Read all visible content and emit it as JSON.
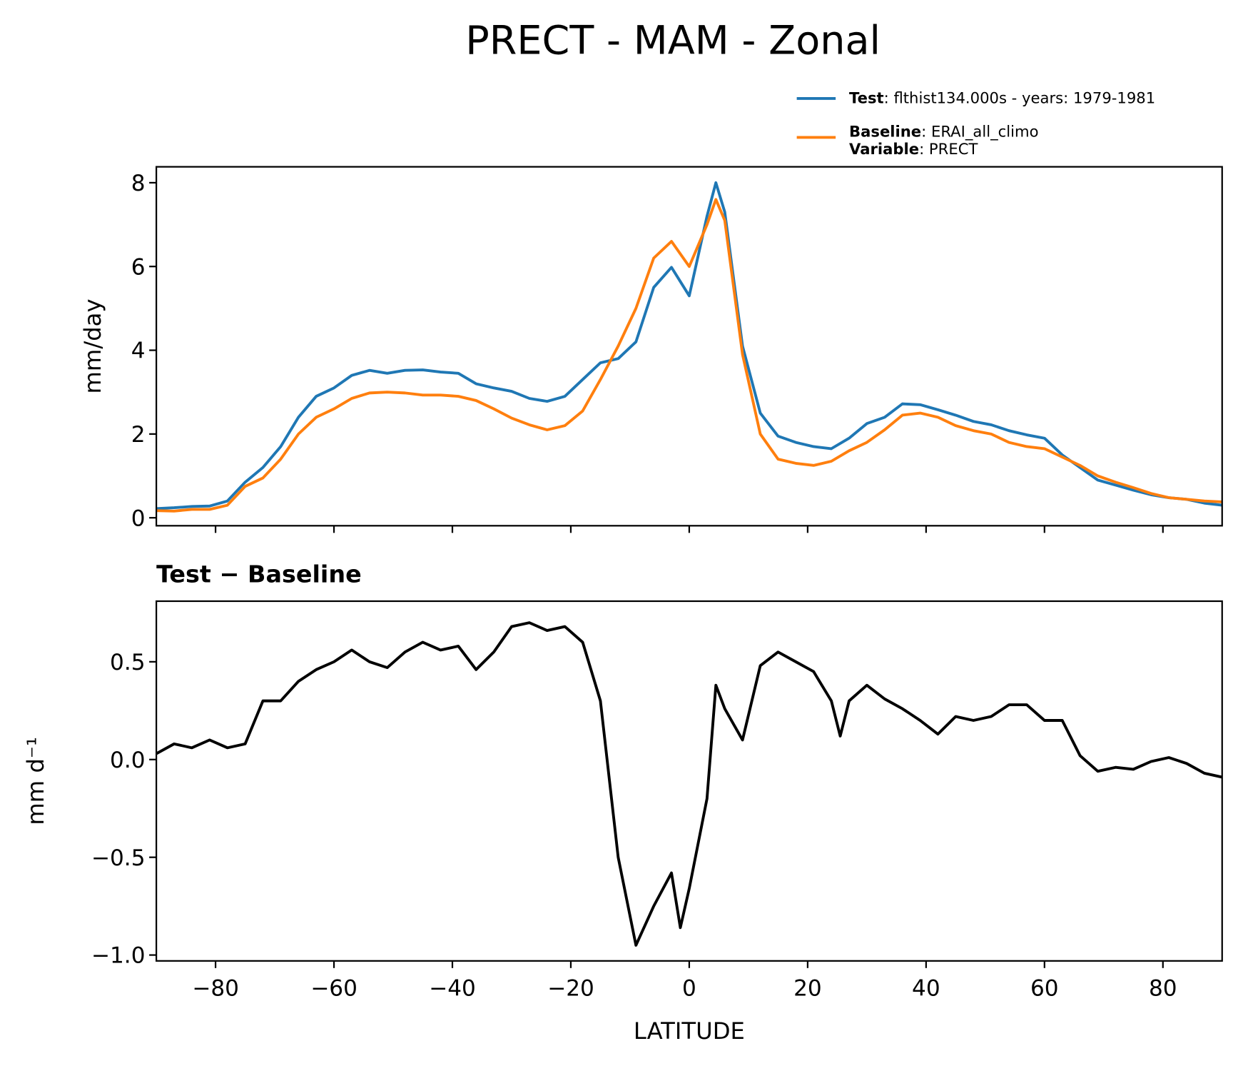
{
  "title": "PRECT - MAM - Zonal",
  "chart_data": [
    {
      "type": "line",
      "ylabel": "mm/day",
      "x": [
        -90,
        -87,
        -84,
        -81,
        -78,
        -75,
        -72,
        -69,
        -66,
        -63,
        -60,
        -57,
        -54,
        -51,
        -48,
        -45,
        -42,
        -39,
        -36,
        -33,
        -30,
        -27,
        -24,
        -21,
        -18,
        -15,
        -12,
        -9,
        -6,
        -3,
        0,
        3,
        4.5,
        6,
        9,
        12,
        15,
        18,
        21,
        24,
        27,
        30,
        33,
        36,
        39,
        42,
        45,
        48,
        51,
        54,
        57,
        60,
        63,
        66,
        69,
        72,
        75,
        78,
        81,
        84,
        87,
        90
      ],
      "series": [
        {
          "name": "Test",
          "legend_detail": ": flthist134.000s - years: 1979-1981",
          "color": "#1f77b4",
          "values": [
            0.22,
            0.24,
            0.27,
            0.28,
            0.4,
            0.85,
            1.2,
            1.7,
            2.4,
            2.9,
            3.1,
            3.4,
            3.52,
            3.45,
            3.52,
            3.53,
            3.48,
            3.45,
            3.2,
            3.1,
            3.02,
            2.85,
            2.78,
            2.9,
            3.3,
            3.7,
            3.8,
            4.2,
            5.5,
            5.98,
            5.3,
            7.2,
            8.0,
            7.3,
            4.1,
            2.5,
            1.95,
            1.8,
            1.7,
            1.65,
            1.9,
            2.25,
            2.4,
            2.72,
            2.7,
            2.58,
            2.45,
            2.3,
            2.22,
            2.08,
            1.98,
            1.9,
            1.5,
            1.2,
            0.9,
            0.78,
            0.66,
            0.55,
            0.48,
            0.44,
            0.35,
            0.3
          ]
        },
        {
          "name": "Baseline",
          "legend_detail": ": ERAI_all_climo",
          "legend_extra_name": "Variable",
          "legend_extra_detail": ": PRECT",
          "color": "#ff7f0e",
          "values": [
            0.17,
            0.16,
            0.2,
            0.2,
            0.3,
            0.75,
            0.95,
            1.4,
            2.0,
            2.4,
            2.6,
            2.85,
            2.98,
            3.0,
            2.98,
            2.93,
            2.93,
            2.9,
            2.8,
            2.6,
            2.38,
            2.22,
            2.1,
            2.2,
            2.55,
            3.3,
            4.1,
            5.0,
            6.2,
            6.6,
            6.0,
            7.0,
            7.6,
            7.1,
            3.9,
            2.0,
            1.4,
            1.3,
            1.25,
            1.35,
            1.6,
            1.8,
            2.1,
            2.45,
            2.5,
            2.4,
            2.2,
            2.08,
            2.0,
            1.8,
            1.7,
            1.65,
            1.45,
            1.25,
            1.0,
            0.85,
            0.72,
            0.58,
            0.48,
            0.44,
            0.4,
            0.38
          ]
        }
      ],
      "xlim": [
        -90,
        90
      ],
      "ylim": [
        -0.19,
        8.38
      ],
      "yticks": [
        0,
        2,
        4,
        6,
        8
      ]
    },
    {
      "type": "line",
      "title": "Test − Baseline",
      "ylabel": "mm d⁻¹",
      "xlabel": "LATITUDE",
      "x": [
        -90,
        -87,
        -84,
        -81,
        -78,
        -75,
        -72,
        -69,
        -66,
        -63,
        -60,
        -57,
        -54,
        -51,
        -48,
        -45,
        -42,
        -39,
        -36,
        -33,
        -30,
        -27,
        -24,
        -21,
        -18,
        -15,
        -12,
        -9,
        -6,
        -3,
        -1.5,
        0,
        3,
        4.5,
        6,
        9,
        12,
        15,
        18,
        21,
        24,
        25.5,
        27,
        30,
        33,
        36,
        39,
        42,
        45,
        48,
        51,
        54,
        57,
        60,
        63,
        66,
        69,
        72,
        75,
        78,
        81,
        84,
        87,
        90
      ],
      "series": [
        {
          "name": "Test − Baseline",
          "color": "#000000",
          "values": [
            0.03,
            0.08,
            0.06,
            0.1,
            0.06,
            0.08,
            0.3,
            0.3,
            0.4,
            0.46,
            0.5,
            0.56,
            0.5,
            0.47,
            0.55,
            0.6,
            0.56,
            0.58,
            0.46,
            0.55,
            0.68,
            0.7,
            0.66,
            0.68,
            0.6,
            0.3,
            -0.5,
            -0.95,
            -0.75,
            -0.58,
            -0.86,
            -0.66,
            -0.2,
            0.38,
            0.26,
            0.1,
            0.48,
            0.55,
            0.5,
            0.45,
            0.3,
            0.12,
            0.3,
            0.38,
            0.31,
            0.26,
            0.2,
            0.13,
            0.22,
            0.2,
            0.22,
            0.28,
            0.28,
            0.2,
            0.2,
            0.02,
            -0.06,
            -0.04,
            -0.05,
            -0.01,
            0.01,
            -0.02,
            -0.07,
            -0.09
          ]
        }
      ],
      "xlim": [
        -90,
        90
      ],
      "ylim": [
        -1.03,
        0.81
      ],
      "xticks": [
        {
          "value": -80,
          "label": "−80"
        },
        {
          "value": -60,
          "label": "−60"
        },
        {
          "value": -40,
          "label": "−40"
        },
        {
          "value": -20,
          "label": "−20"
        },
        0,
        20,
        40,
        60,
        80
      ],
      "yticks": [
        {
          "value": -1,
          "label": "−1.0"
        },
        {
          "value": -0.5,
          "label": "−0.5"
        },
        {
          "value": 0,
          "label": "0.0"
        },
        0.5
      ]
    }
  ]
}
